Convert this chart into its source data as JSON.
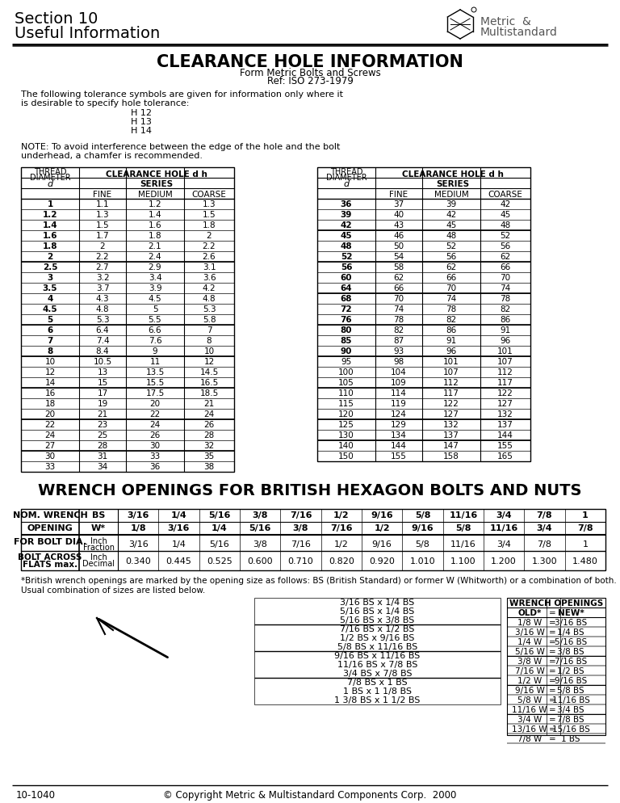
{
  "page_title_line1": "Section 10",
  "page_title_line2": "Useful Information",
  "main_title": "CLEARANCE HOLE INFORMATION",
  "subtitle1": "Form Metric Bolts and Screws",
  "subtitle2": "Ref: ISO 273-1979",
  "tolerance_intro": "The following tolerance symbols are given for information only where it\nis desirable to specify hole tolerance:",
  "tolerance_list": [
    "H 12",
    "H 13",
    "H 14"
  ],
  "note_text": "NOTE: To avoid interference between the edge of the hole and the bolt\nunderhead, a chamfer is recommended.",
  "table1_data": [
    [
      "1",
      "1.1",
      "1.2",
      "1.3"
    ],
    [
      "1.2",
      "1.3",
      "1.4",
      "1.5"
    ],
    [
      "1.4",
      "1.5",
      "1.6",
      "1.8"
    ],
    [
      "1.6",
      "1.7",
      "1.8",
      "2"
    ],
    [
      "1.8",
      "2",
      "2.1",
      "2.2"
    ],
    [
      "2",
      "2.2",
      "2.4",
      "2.6"
    ],
    [
      "2.5",
      "2.7",
      "2.9",
      "3.1"
    ],
    [
      "3",
      "3.2",
      "3.4",
      "3.6"
    ],
    [
      "3.5",
      "3.7",
      "3.9",
      "4.2"
    ],
    [
      "4",
      "4.3",
      "4.5",
      "4.8"
    ],
    [
      "4.5",
      "4.8",
      "5",
      "5.3"
    ],
    [
      "5",
      "5.3",
      "5.5",
      "5.8"
    ],
    [
      "6",
      "6.4",
      "6.6",
      "7"
    ],
    [
      "7",
      "7.4",
      "7.6",
      "8"
    ],
    [
      "8",
      "8.4",
      "9",
      "10"
    ],
    [
      "10",
      "10.5",
      "11",
      "12"
    ],
    [
      "12",
      "13",
      "13.5",
      "14.5"
    ],
    [
      "14",
      "15",
      "15.5",
      "16.5"
    ],
    [
      "16",
      "17",
      "17.5",
      "18.5"
    ],
    [
      "18",
      "19",
      "20",
      "21"
    ],
    [
      "20",
      "21",
      "22",
      "24"
    ],
    [
      "22",
      "23",
      "24",
      "26"
    ],
    [
      "24",
      "25",
      "26",
      "28"
    ],
    [
      "27",
      "28",
      "30",
      "32"
    ],
    [
      "30",
      "31",
      "33",
      "35"
    ],
    [
      "33",
      "34",
      "36",
      "38"
    ]
  ],
  "table1_bold": [
    0,
    1,
    2,
    3,
    4,
    5,
    6,
    7,
    8,
    9,
    10,
    11,
    12,
    13,
    14
  ],
  "table1_separators": [
    6,
    12,
    15,
    18,
    21,
    24
  ],
  "table2_data": [
    [
      "36",
      "37",
      "39",
      "42"
    ],
    [
      "39",
      "40",
      "42",
      "45"
    ],
    [
      "42",
      "43",
      "45",
      "48"
    ],
    [
      "45",
      "46",
      "48",
      "52"
    ],
    [
      "48",
      "50",
      "52",
      "56"
    ],
    [
      "52",
      "54",
      "56",
      "62"
    ],
    [
      "56",
      "58",
      "62",
      "66"
    ],
    [
      "60",
      "62",
      "66",
      "70"
    ],
    [
      "64",
      "66",
      "70",
      "74"
    ],
    [
      "68",
      "70",
      "74",
      "78"
    ],
    [
      "72",
      "74",
      "78",
      "82"
    ],
    [
      "76",
      "78",
      "82",
      "86"
    ],
    [
      "80",
      "82",
      "86",
      "91"
    ],
    [
      "85",
      "87",
      "91",
      "96"
    ],
    [
      "90",
      "93",
      "96",
      "101"
    ],
    [
      "95",
      "98",
      "101",
      "107"
    ],
    [
      "100",
      "104",
      "107",
      "112"
    ],
    [
      "105",
      "109",
      "112",
      "117"
    ],
    [
      "110",
      "114",
      "117",
      "122"
    ],
    [
      "115",
      "119",
      "122",
      "127"
    ],
    [
      "120",
      "124",
      "127",
      "132"
    ],
    [
      "125",
      "129",
      "132",
      "137"
    ],
    [
      "130",
      "134",
      "137",
      "144"
    ],
    [
      "140",
      "144",
      "147",
      "155"
    ],
    [
      "150",
      "155",
      "158",
      "165"
    ]
  ],
  "table2_bold": [
    0,
    1,
    2,
    3,
    4,
    5,
    6,
    7,
    8,
    9,
    10,
    11,
    12,
    13,
    14
  ],
  "table2_separators": [
    3,
    6,
    9,
    12,
    15,
    18,
    21,
    23
  ],
  "wrench_title": "WRENCH OPENINGS FOR BRITISH HEXAGON BOLTS AND NUTS",
  "wrench_top_headers": [
    "NOM. WRENCH",
    "BS",
    "3/16",
    "1/4",
    "5/16",
    "3/8",
    "7/16",
    "1/2",
    "9/16",
    "5/8",
    "11/16",
    "3/4",
    "7/8",
    "1"
  ],
  "wrench_bot_headers": [
    "OPENING",
    "W*",
    "1/8",
    "3/16",
    "1/4",
    "5/16",
    "3/8",
    "7/16",
    "1/2",
    "9/16",
    "5/8",
    "11/16",
    "3/4",
    "7/8"
  ],
  "wrench_row1_data": [
    "3/16",
    "1/4",
    "5/16",
    "3/8",
    "7/16",
    "1/2",
    "9/16",
    "5/8",
    "11/16",
    "3/4",
    "7/8",
    "1"
  ],
  "wrench_row2_data": [
    "0.340",
    "0.445",
    "0.525",
    "0.600",
    "0.710",
    "0.820",
    "0.920",
    "1.010",
    "1.100",
    "1.200",
    "1.300",
    "1.480"
  ],
  "wrench_note": "*British wrench openings are marked by the opening size as follows: BS (British Standard) or former W (Whitworth) or a combination of both.",
  "wrench_note2": "Usual combination of sizes are listed below.",
  "bs_combinations": [
    "3/16 BS x 1/4 BS",
    "5/16 BS x 1/4 BS",
    "5/16 BS x 3/8 BS",
    "7/16 BS x 1/2 BS",
    "1/2 BS x 9/16 BS",
    "5/8 BS x 11/16 BS",
    "9/16 BS x 11/16 BS",
    "11/16 BS x 7/8 BS",
    "3/4 BS x 7/8 BS",
    "7/8 BS x 1 BS",
    "1 BS x 1 1/8 BS",
    "1 3/8 BS x 1 1/2 BS"
  ],
  "wrench_old": [
    "OLD*",
    "1/8 W",
    "3/16 W",
    "1/4 W",
    "5/16 W",
    "3/8 W",
    "7/16 W",
    "1/2 W",
    "9/16 W",
    "5/8 W",
    "11/16 W",
    "3/4 W",
    "13/16 W",
    "7/8 W"
  ],
  "wrench_new": [
    "NEW*",
    "3/16 BS",
    "1/4 BS",
    "5/16 BS",
    "3/8 BS",
    "7/16 BS",
    "1/2 BS",
    "9/16 BS",
    "5/8 BS",
    "11/16 BS",
    "3/4 BS",
    "7/8 BS",
    "15/16 BS",
    "1 BS"
  ],
  "footer_left": "10-1040",
  "footer_right": "© Copyright Metric & Multistandard Components Corp.  2000"
}
